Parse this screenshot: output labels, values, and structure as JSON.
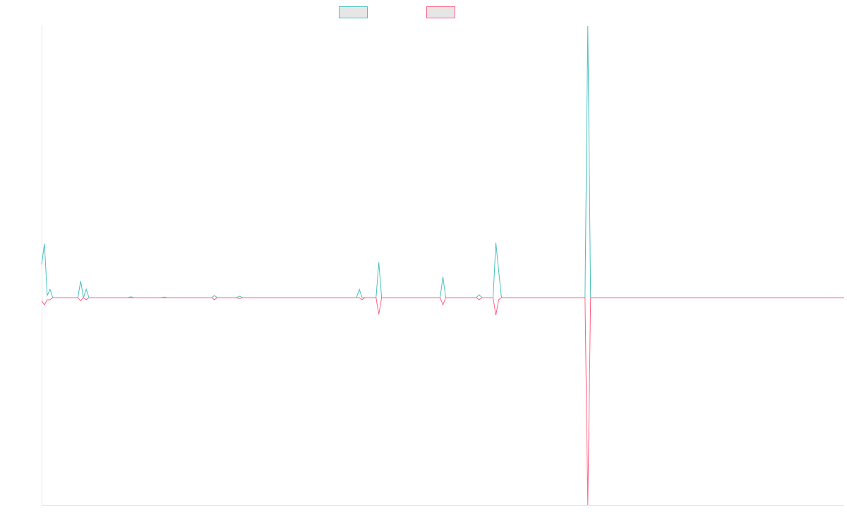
{
  "chart_data": {
    "type": "line",
    "title": "",
    "xlabel": "",
    "ylabel": "",
    "grid": false,
    "legend": "top-center",
    "x_count": 289,
    "ylim": [
      -1,
      1
    ],
    "series": [
      {
        "name": "",
        "color": "#4bc0c0",
        "fill": "#e6e6e6",
        "points": [
          [
            0,
            0.16
          ],
          [
            1,
            0.26
          ],
          [
            2,
            0.01
          ],
          [
            3,
            0.04
          ],
          [
            4,
            0.0
          ],
          [
            13,
            0.0
          ],
          [
            14,
            0.08
          ],
          [
            15,
            0.0
          ],
          [
            16,
            0.04
          ],
          [
            17,
            0.0
          ],
          [
            31,
            0.0
          ],
          [
            32,
            0.004
          ],
          [
            33,
            0.0
          ],
          [
            43,
            0.0
          ],
          [
            44,
            0.003
          ],
          [
            45,
            0.0
          ],
          [
            61,
            0.0
          ],
          [
            62,
            0.01
          ],
          [
            63,
            0.0
          ],
          [
            70,
            0.0
          ],
          [
            71,
            0.007
          ],
          [
            72,
            0.0
          ],
          [
            113,
            0.0
          ],
          [
            114,
            0.04
          ],
          [
            115,
            0.0
          ],
          [
            116,
            0.0
          ],
          [
            120,
            0.0
          ],
          [
            121,
            0.17
          ],
          [
            122,
            0.0
          ],
          [
            143,
            0.0
          ],
          [
            144,
            0.1
          ],
          [
            145,
            0.0
          ],
          [
            156,
            0.0
          ],
          [
            157,
            0.014
          ],
          [
            158,
            0.0
          ],
          [
            162,
            0.0
          ],
          [
            163,
            0.265
          ],
          [
            164,
            0.13
          ],
          [
            165,
            0.0
          ],
          [
            195,
            0.0
          ],
          [
            196,
            1.31
          ],
          [
            197,
            0.0
          ],
          [
            288,
            0.0
          ]
        ]
      },
      {
        "name": "",
        "color": "#ff6384",
        "fill": "#e6e6e6",
        "points": [
          [
            0,
            -0.015
          ],
          [
            1,
            -0.035
          ],
          [
            2,
            -0.01
          ],
          [
            3,
            -0.01
          ],
          [
            4,
            0.0
          ],
          [
            13,
            0.0
          ],
          [
            14,
            -0.015
          ],
          [
            15,
            0.0
          ],
          [
            16,
            -0.01
          ],
          [
            17,
            0.0
          ],
          [
            61,
            0.0
          ],
          [
            62,
            -0.01
          ],
          [
            63,
            0.0
          ],
          [
            70,
            0.0
          ],
          [
            71,
            -0.005
          ],
          [
            72,
            0.0
          ],
          [
            114,
            0.0
          ],
          [
            115,
            -0.01
          ],
          [
            116,
            0.0
          ],
          [
            120,
            0.0
          ],
          [
            121,
            -0.08
          ],
          [
            122,
            0.0
          ],
          [
            143,
            0.0
          ],
          [
            144,
            -0.035
          ],
          [
            145,
            0.0
          ],
          [
            156,
            0.0
          ],
          [
            157,
            -0.01
          ],
          [
            158,
            0.0
          ],
          [
            162,
            0.0
          ],
          [
            163,
            -0.085
          ],
          [
            164,
            -0.01
          ],
          [
            165,
            0.0
          ],
          [
            195,
            0.0
          ],
          [
            196,
            -1.0
          ],
          [
            197,
            0.0
          ],
          [
            288,
            0.0
          ]
        ]
      }
    ]
  }
}
